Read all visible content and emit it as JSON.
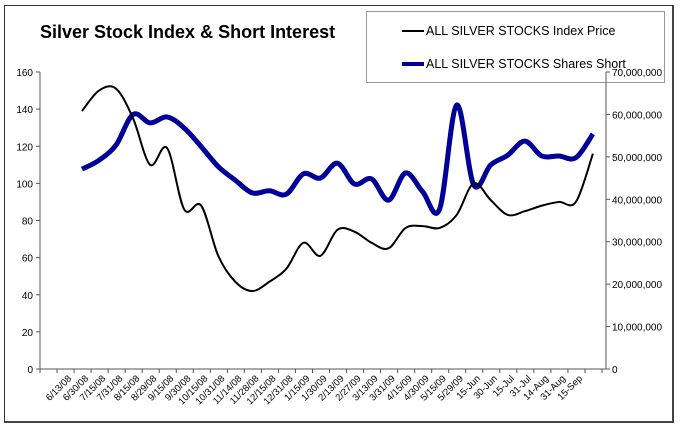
{
  "chart_data": {
    "type": "line",
    "title": "Silver Stock Index & Short Interest",
    "categories": [
      "6/13/08",
      "6/30/08",
      "7/15/08",
      "7/31/08",
      "8/15/08",
      "8/29/08",
      "9/15/08",
      "9/30/08",
      "10/15/08",
      "10/31/08",
      "11/14/08",
      "11/28/08",
      "12/15/08",
      "12/31/08",
      "1/15/09",
      "1/30/09",
      "2/13/09",
      "2/27/09",
      "3/13/09",
      "3/31/09",
      "4/15/09",
      "4/30/09",
      "5/15/09",
      "5/29/09",
      "15-Jun",
      "30-Jun",
      "15-Jul",
      "31-Jul",
      "14-Aug",
      "31-Aug",
      "15-Sep"
    ],
    "series": [
      {
        "name": "ALL SILVER STOCKS Index Price",
        "axis": "left",
        "color": "#000000",
        "values": [
          139,
          150,
          151,
          135,
          110,
          119,
          86,
          88,
          61,
          47,
          42,
          47,
          54,
          68,
          61,
          75,
          74,
          68,
          65,
          76,
          77,
          76,
          83,
          100,
          91,
          83,
          85,
          88,
          90,
          90,
          116
        ]
      },
      {
        "name": "ALL SILVER STOCKS Shares Short",
        "axis": "right",
        "color": "#000099",
        "values": [
          47100000,
          49200000,
          52800000,
          60000000,
          58000000,
          59400000,
          56800000,
          52400000,
          47700000,
          44500000,
          41500000,
          42000000,
          41200000,
          46000000,
          45000000,
          48500000,
          43600000,
          44800000,
          39800000,
          46200000,
          41800000,
          37700000,
          62200000,
          43400000,
          48100000,
          50400000,
          53700000,
          50200000,
          50200000,
          49800000,
          55400000
        ]
      }
    ],
    "y_left": {
      "ylim": [
        0,
        160
      ],
      "ticks": [
        "0",
        "20",
        "40",
        "60",
        "80",
        "100",
        "120",
        "140",
        "160"
      ]
    },
    "y_right": {
      "ylim": [
        0,
        70000000
      ],
      "ticks": [
        "0",
        "10,000,000",
        "20,000,000",
        "30,000,000",
        "40,000,000",
        "50,000,000",
        "60,000,000",
        "70,000,000"
      ]
    },
    "xlabel": "",
    "ylabel": "",
    "grid": false,
    "legend": "top-right"
  }
}
